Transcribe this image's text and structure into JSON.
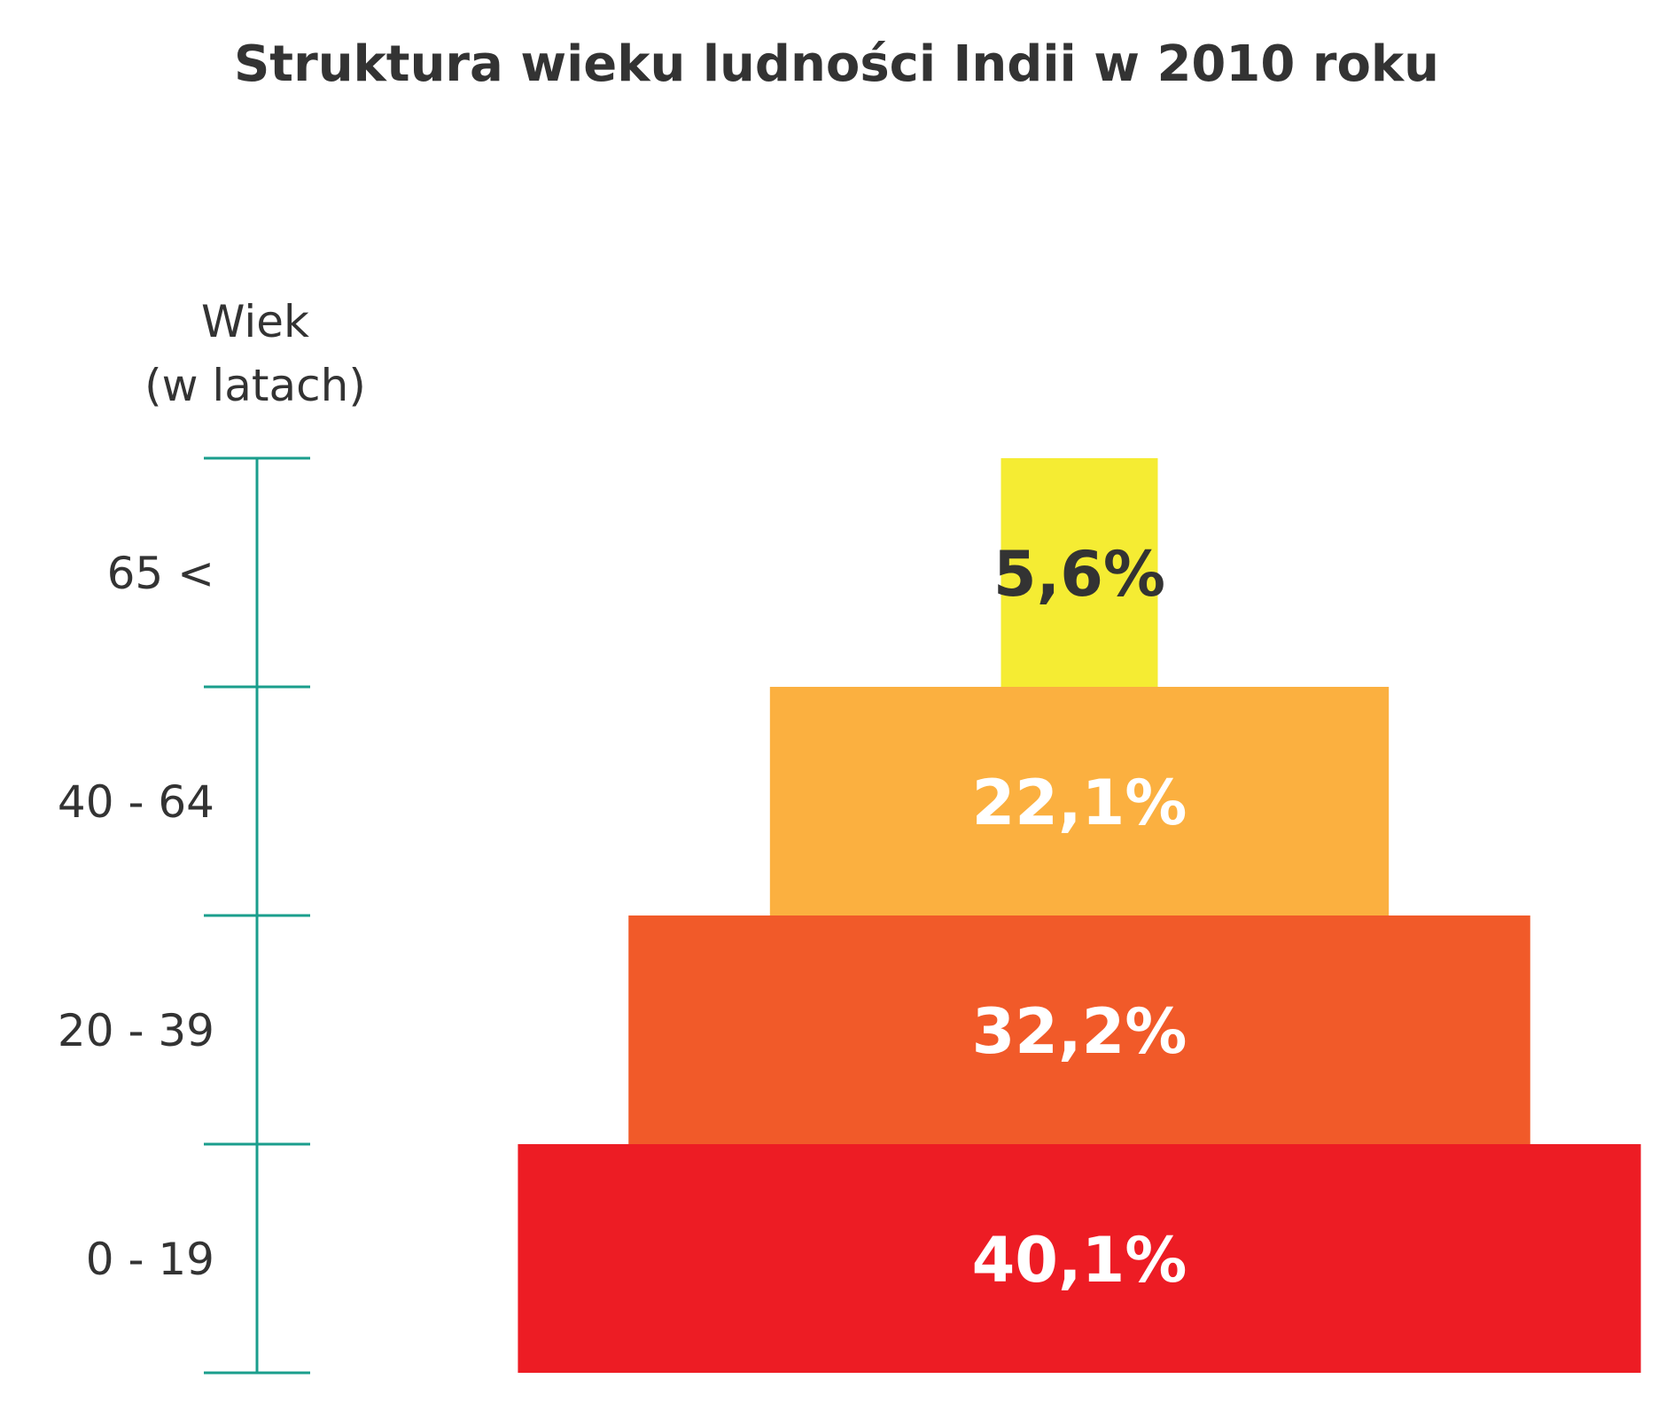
{
  "chart_data": {
    "type": "bar",
    "orientation": "horizontal",
    "style": "population-pyramid",
    "title": "Struktura wieku ludności Indii w 2010 roku",
    "ylabel_line1": "Wiek",
    "ylabel_line2": "(w latach)",
    "categories": [
      "0 - 19",
      "20 - 39",
      "40 - 64",
      "65 <"
    ],
    "values": [
      40.1,
      32.2,
      22.1,
      5.6
    ],
    "value_labels": [
      "40,1%",
      "32,2%",
      "22,1%",
      "5,6%"
    ],
    "unit": "%",
    "bar_colors": [
      "#ed1c24",
      "#f15a29",
      "#fbb040",
      "#f5ec33"
    ],
    "label_colors": [
      "#ffffff",
      "#ffffff",
      "#ffffff",
      "#333333"
    ],
    "axis_color": "#1a9e8c",
    "text_color": "#333333",
    "grid": false,
    "legend": "none"
  }
}
